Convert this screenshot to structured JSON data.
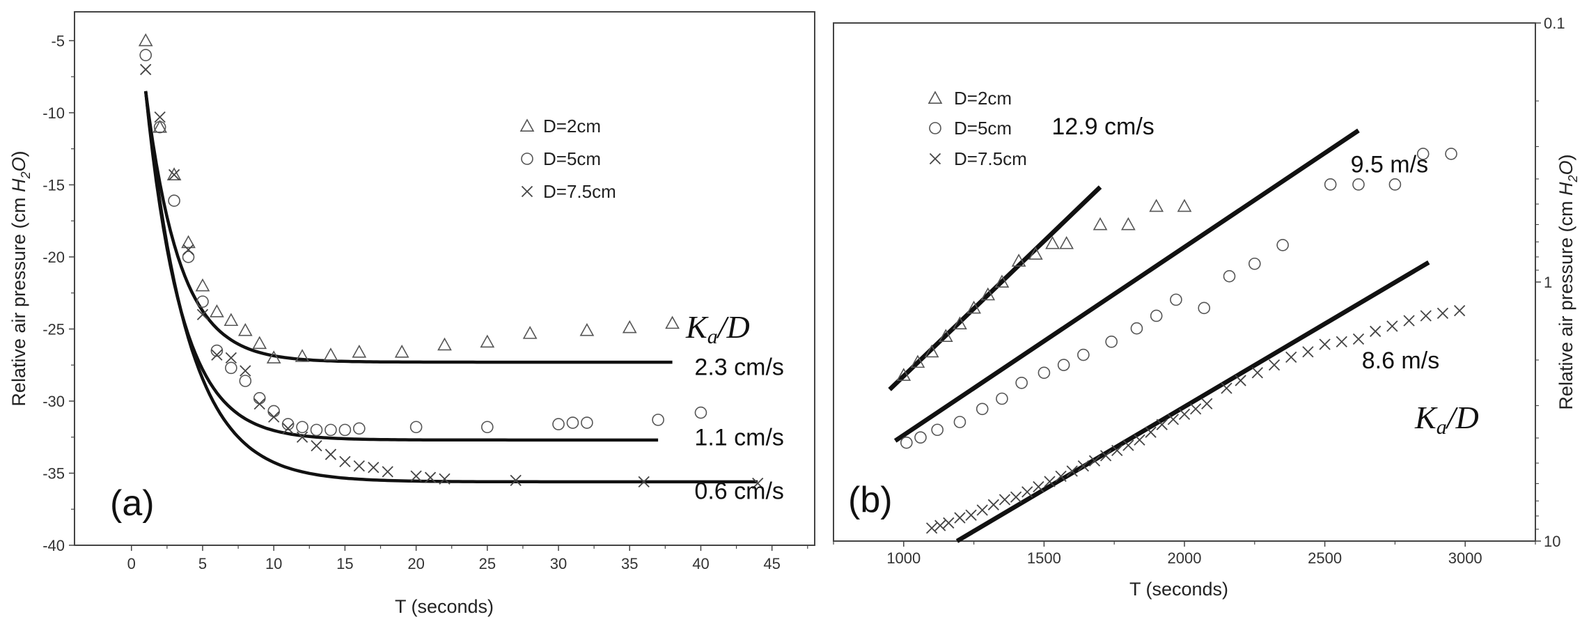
{
  "chart_data": [
    {
      "type": "scatter",
      "panel_label": "(a)",
      "xlabel": "T (seconds)",
      "ylabel_prefix": "Relative air pressure (cm ",
      "ylabel_chem": "H",
      "ylabel_sub": "2",
      "ylabel_chem2": "O",
      "ylabel_suffix": ")",
      "xlim": [
        -4,
        48
      ],
      "ylim": [
        -40,
        -3
      ],
      "xticks": [
        0,
        5,
        10,
        15,
        20,
        25,
        30,
        35,
        40,
        45
      ],
      "yticks": [
        -40,
        -35,
        -30,
        -25,
        -20,
        -15,
        -10,
        -5
      ],
      "legend_position": "top-right",
      "legend": [
        {
          "marker": "triangle",
          "label": "D=2cm"
        },
        {
          "marker": "circle",
          "label": "D=5cm"
        },
        {
          "marker": "cross",
          "label": "D=7.5cm"
        }
      ],
      "series": [
        {
          "name": "D=2cm",
          "marker": "triangle",
          "x": [
            1,
            2,
            3,
            4,
            5,
            6,
            7,
            8,
            9,
            10,
            12,
            14,
            16,
            19,
            22,
            25,
            28,
            32,
            35,
            38
          ],
          "y": [
            -5,
            -11,
            -14.3,
            -19,
            -22,
            -23.8,
            -24.4,
            -25.1,
            -26,
            -27,
            -26.9,
            -26.8,
            -26.6,
            -26.6,
            -26.1,
            -25.9,
            -25.3,
            -25.1,
            -24.9,
            -24.6
          ]
        },
        {
          "name": "D=5cm",
          "marker": "circle",
          "x": [
            1,
            2,
            3,
            4,
            5,
            6,
            7,
            8,
            9,
            10,
            11,
            12,
            13,
            14,
            15,
            16,
            20,
            25,
            30,
            31,
            32,
            37,
            40
          ],
          "y": [
            -6,
            -11,
            -16.1,
            -20,
            -23.1,
            -26.5,
            -27.7,
            -28.6,
            -29.8,
            -30.7,
            -31.6,
            -31.8,
            -32.0,
            -32.0,
            -32.0,
            -31.9,
            -31.8,
            -31.8,
            -31.6,
            -31.5,
            -31.5,
            -31.3,
            -30.8
          ]
        },
        {
          "name": "D=7.5cm",
          "marker": "cross",
          "x": [
            1,
            2,
            3,
            4,
            5,
            6,
            7,
            8,
            9,
            10,
            11,
            12,
            13,
            14,
            15,
            16,
            17,
            18,
            20,
            21,
            22,
            27,
            36,
            44
          ],
          "y": [
            -7,
            -10.3,
            -14.3,
            -19.5,
            -24,
            -26.8,
            -27,
            -27.9,
            -30.2,
            -31.1,
            -31.9,
            -32.5,
            -33.1,
            -33.7,
            -34.2,
            -34.5,
            -34.6,
            -34.9,
            -35.2,
            -35.3,
            -35.4,
            -35.5,
            -35.6,
            -35.7
          ]
        }
      ],
      "fits": [
        {
          "x0": 1,
          "y0": -8.5,
          "yinf": -27.3,
          "tau": 2.4,
          "xend": 38
        },
        {
          "x0": 1,
          "y0": -8.5,
          "yinf": -32.7,
          "tau": 2.5,
          "xend": 37
        },
        {
          "x0": 1,
          "y0": -8.5,
          "yinf": -35.6,
          "tau": 3.0,
          "xend": 44
        }
      ],
      "annotations": [
        {
          "text": "2.3 cm/s",
          "x": 42.7,
          "y": -27.6
        },
        {
          "text": "1.1 cm/s",
          "x": 42.7,
          "y": -32.5
        },
        {
          "text": "0.6 cm/s",
          "x": 42.7,
          "y": -36.2
        }
      ],
      "ka_label": {
        "main": "K",
        "sub": "a",
        "rest": "/D"
      }
    },
    {
      "type": "scatter",
      "panel_label": "(b)",
      "xlabel": "T (seconds)",
      "ylabel_prefix": "Relative air pressure (cm ",
      "ylabel_chem": "H",
      "ylabel_sub": "2",
      "ylabel_chem2": "O",
      "ylabel_suffix": ")",
      "xlim": [
        750,
        3250
      ],
      "ylim": [
        0.1,
        10
      ],
      "y_scale": "log (reversed, axis on right)",
      "xticks": [
        1000,
        1500,
        2000,
        2500,
        3000
      ],
      "yticks": [
        0.1,
        1,
        10
      ],
      "ytick_labels": [
        "0.1",
        "1",
        "10"
      ],
      "legend_position": "top-left",
      "legend": [
        {
          "marker": "triangle",
          "label": "D=2cm"
        },
        {
          "marker": "circle",
          "label": "D=5cm"
        },
        {
          "marker": "cross",
          "label": "D=7.5cm"
        }
      ],
      "series": [
        {
          "name": "D=2cm",
          "marker": "triangle",
          "x": [
            1000,
            1050,
            1100,
            1150,
            1200,
            1250,
            1300,
            1350,
            1410,
            1470,
            1530,
            1580,
            1700,
            1800,
            1900,
            2000
          ],
          "y": [
            2.29,
            2.04,
            1.86,
            1.62,
            1.45,
            1.26,
            1.12,
            1.0,
            0.83,
            0.78,
            0.71,
            0.71,
            0.6,
            0.6,
            0.51,
            0.51
          ]
        },
        {
          "name": "D=5cm",
          "marker": "circle",
          "x": [
            1010,
            1060,
            1120,
            1200,
            1280,
            1350,
            1420,
            1500,
            1570,
            1640,
            1740,
            1830,
            1900,
            1970,
            2070,
            2160,
            2250,
            2350,
            2520,
            2620,
            2750,
            2850,
            2950
          ],
          "y": [
            4.17,
            3.98,
            3.72,
            3.47,
            3.09,
            2.82,
            2.45,
            2.24,
            2.09,
            1.91,
            1.7,
            1.51,
            1.35,
            1.17,
            1.26,
            0.95,
            0.85,
            0.72,
            0.42,
            0.42,
            0.42,
            0.32,
            0.32
          ]
        },
        {
          "name": "D=7.5cm",
          "marker": "cross",
          "x": [
            1100,
            1130,
            1160,
            1200,
            1240,
            1280,
            1320,
            1360,
            1400,
            1440,
            1480,
            1520,
            1560,
            1600,
            1640,
            1680,
            1720,
            1760,
            1800,
            1840,
            1880,
            1920,
            1960,
            2000,
            2040,
            2080,
            2150,
            2200,
            2260,
            2320,
            2380,
            2440,
            2500,
            2560,
            2620,
            2680,
            2740,
            2800,
            2860,
            2920,
            2980
          ],
          "y": [
            8.91,
            8.71,
            8.51,
            8.13,
            7.94,
            7.59,
            7.24,
            6.92,
            6.76,
            6.46,
            6.17,
            5.89,
            5.62,
            5.37,
            5.13,
            4.9,
            4.68,
            4.47,
            4.27,
            4.07,
            3.8,
            3.55,
            3.39,
            3.24,
            3.09,
            2.95,
            2.57,
            2.4,
            2.24,
            2.09,
            1.95,
            1.86,
            1.74,
            1.7,
            1.66,
            1.55,
            1.48,
            1.41,
            1.35,
            1.32,
            1.29
          ]
        }
      ],
      "fits": [
        {
          "x1": 950,
          "y1": 2.6,
          "x2": 1700,
          "y2": 0.43
        },
        {
          "x1": 970,
          "y1": 4.1,
          "x2": 2620,
          "y2": 0.26
        },
        {
          "x1": 1190,
          "y1": 10.0,
          "x2": 2870,
          "y2": 0.84
        }
      ],
      "annotations": [
        {
          "text": "12.9 cm/s",
          "x": 1710,
          "y": 0.25
        },
        {
          "text": "9.5 m/s",
          "x": 2730,
          "y": 0.35
        },
        {
          "text": "8.6 m/s",
          "x": 2770,
          "y": 2.0
        }
      ],
      "ka_label": {
        "main": "K",
        "sub": "a",
        "rest": "/D"
      }
    }
  ]
}
